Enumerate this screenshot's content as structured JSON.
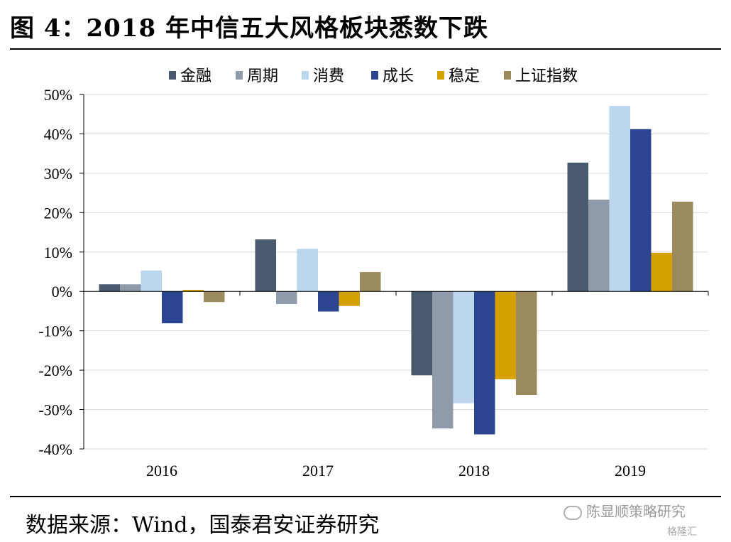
{
  "title": "图 4：2018 年中信五大风格板块悉数下跌",
  "source": "数据来源：Wind，国泰君安证券研究",
  "watermark": "陈显顺策略研究",
  "brand": "格隆汇",
  "chart_data": {
    "type": "bar",
    "categories": [
      "2016",
      "2017",
      "2018",
      "2019"
    ],
    "series": [
      {
        "name": "金融",
        "color": "#4a5a6e",
        "values": [
          1.8,
          13.2,
          -21.3,
          32.7
        ]
      },
      {
        "name": "周期",
        "color": "#8f9ba8",
        "values": [
          1.8,
          -3.2,
          -34.8,
          23.3
        ]
      },
      {
        "name": "消费",
        "color": "#bcd6ee",
        "values": [
          5.3,
          10.8,
          -28.4,
          47.1
        ]
      },
      {
        "name": "成长",
        "color": "#2b4590",
        "values": [
          -8.1,
          -5.1,
          -36.3,
          41.2
        ]
      },
      {
        "name": "稳定",
        "color": "#d4a100",
        "values": [
          0.4,
          -3.7,
          -22.3,
          9.8
        ]
      },
      {
        "name": "上证指数",
        "color": "#9a8a5e",
        "values": [
          -2.7,
          4.9,
          -26.3,
          22.8
        ]
      }
    ],
    "ylim": [
      -40,
      50
    ],
    "yticks": [
      50,
      40,
      30,
      20,
      10,
      0,
      -10,
      -20,
      -30,
      -40
    ],
    "ytick_labels": [
      "50%",
      "40%",
      "30%",
      "20%",
      "10%",
      "0%",
      "-10%",
      "-20%",
      "-30%",
      "-40%"
    ],
    "grid": true,
    "legend_position": "top-center"
  }
}
